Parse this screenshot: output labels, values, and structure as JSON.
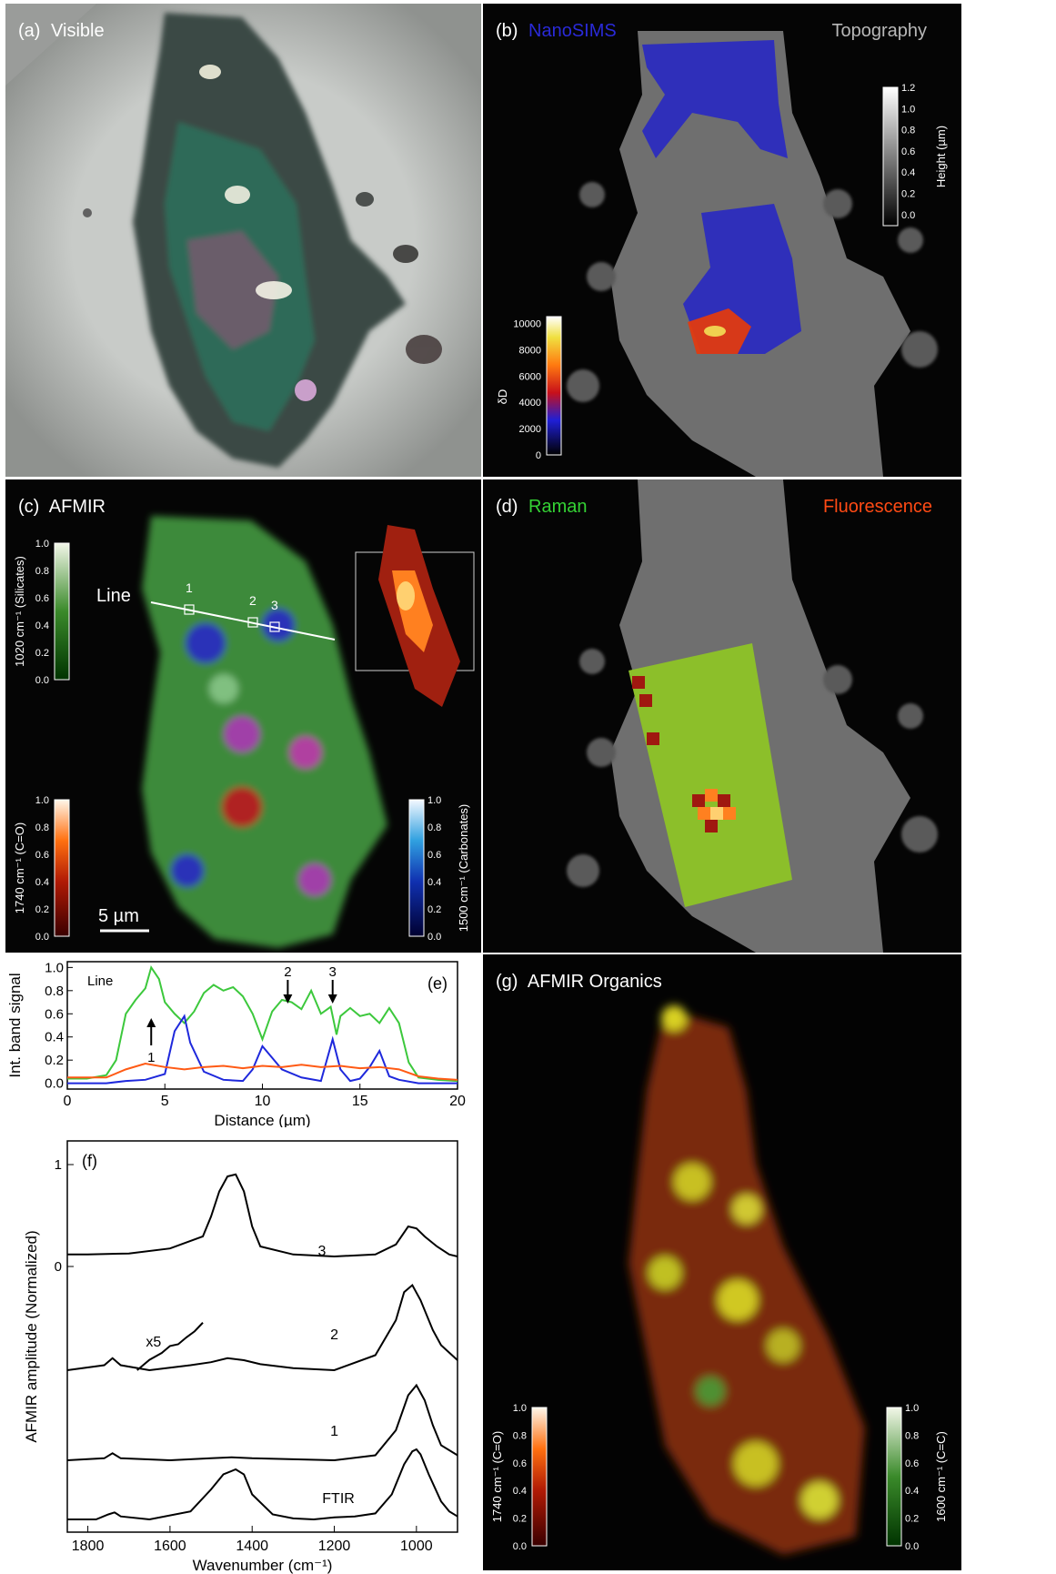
{
  "panels": {
    "a": {
      "letter": "(a)",
      "title": "Visible"
    },
    "b": {
      "letter": "(b)",
      "title_left": "NanoSIMS",
      "title_right": "Topography",
      "height_cbar": {
        "label": "Height (µm)",
        "ticks": [
          "0.0",
          "0.2",
          "0.4",
          "0.6",
          "0.8",
          "1.0",
          "1.2"
        ]
      },
      "dD_cbar": {
        "label": "δD",
        "ticks": [
          "0",
          "2000",
          "4000",
          "6000",
          "8000",
          "10000"
        ]
      }
    },
    "c": {
      "letter": "(c)",
      "title": "AFMIR",
      "line_label": "Line",
      "points": [
        "1",
        "2",
        "3"
      ],
      "scale_bar": "5 µm",
      "cbar_silicates": {
        "label": "1020 cm⁻¹ (Silicates)",
        "ticks": [
          "0.0",
          "0.2",
          "0.4",
          "0.6",
          "0.8",
          "1.0"
        ]
      },
      "cbar_co": {
        "label": "1740 cm⁻¹ (C=O)",
        "ticks": [
          "0.0",
          "0.2",
          "0.4",
          "0.6",
          "0.8",
          "1.0"
        ]
      },
      "cbar_carbonates": {
        "label": "1500 cm⁻¹ (Carbonates)",
        "ticks": [
          "0.0",
          "0.2",
          "0.4",
          "0.6",
          "0.8",
          "1.0"
        ]
      }
    },
    "d": {
      "letter": "(d)",
      "title_left": "Raman",
      "title_right": "Fluorescence"
    },
    "g": {
      "letter": "(g)",
      "title": "AFMIR Organics",
      "cbar_co": {
        "label": "1740 cm⁻¹ (C=O)",
        "ticks": [
          "0.0",
          "0.2",
          "0.4",
          "0.6",
          "0.8",
          "1.0"
        ]
      },
      "cbar_cc": {
        "label": "1600 cm⁻¹ (C=C)",
        "ticks": [
          "0.0",
          "0.2",
          "0.4",
          "0.6",
          "0.8",
          "1.0"
        ]
      }
    }
  },
  "colors": {
    "green": "#3cc83c",
    "blue": "#1e28dc",
    "orange": "#ff5a14",
    "nanosims_title": "#2a2ad8",
    "raman_title": "#34d234",
    "fluor_title": "#ff4a14"
  },
  "chart_data": [
    {
      "panel": "(e)",
      "type": "line",
      "title": "",
      "inner_label": "Line",
      "xlabel": "Distance (µm)",
      "ylabel": "Int. band signal",
      "xlim": [
        0,
        20
      ],
      "ylim": [
        -0.05,
        1.05
      ],
      "xticks": [
        0,
        5,
        10,
        15,
        20
      ],
      "yticks": [
        0.0,
        0.2,
        0.4,
        0.6,
        0.8,
        1.0
      ],
      "markers": [
        {
          "label": "1",
          "x": 4.3,
          "direction": "up"
        },
        {
          "label": "2",
          "x": 11.3,
          "direction": "down"
        },
        {
          "label": "3",
          "x": 13.6,
          "direction": "down"
        }
      ],
      "series": [
        {
          "color": "green",
          "x": [
            0,
            1,
            2,
            2.5,
            3,
            3.5,
            4,
            4.3,
            4.7,
            5,
            5.5,
            6,
            6.5,
            7,
            7.5,
            8,
            8.5,
            9,
            9.5,
            10,
            10.5,
            11,
            11.5,
            12,
            12.5,
            13,
            13.5,
            13.8,
            14,
            14.5,
            15,
            15.5,
            16,
            16.5,
            17,
            17.5,
            18,
            19,
            20
          ],
          "y": [
            0.04,
            0.04,
            0.07,
            0.2,
            0.6,
            0.72,
            0.82,
            1.0,
            0.9,
            0.7,
            0.6,
            0.52,
            0.62,
            0.78,
            0.85,
            0.8,
            0.83,
            0.75,
            0.6,
            0.38,
            0.62,
            0.72,
            0.7,
            0.64,
            0.8,
            0.6,
            0.66,
            0.42,
            0.58,
            0.65,
            0.58,
            0.6,
            0.52,
            0.65,
            0.52,
            0.18,
            0.05,
            0.03,
            0.02
          ]
        },
        {
          "color": "blue",
          "x": [
            0,
            2,
            3,
            4,
            5,
            5.5,
            6,
            6.3,
            7,
            8,
            9,
            9.5,
            10,
            10.5,
            11,
            12,
            13,
            13.6,
            14,
            14.5,
            15,
            15.5,
            16,
            16.5,
            17,
            18,
            20
          ],
          "y": [
            0.0,
            0.0,
            0.02,
            0.03,
            0.08,
            0.45,
            0.58,
            0.35,
            0.1,
            0.03,
            0.02,
            0.12,
            0.32,
            0.22,
            0.12,
            0.05,
            0.02,
            0.38,
            0.12,
            0.02,
            0.04,
            0.14,
            0.28,
            0.06,
            0.03,
            0.0,
            0.0
          ]
        },
        {
          "color": "orange",
          "x": [
            0,
            2,
            3,
            4,
            5,
            6,
            7,
            8,
            9,
            10,
            11,
            12,
            13,
            14,
            15,
            16,
            17,
            18,
            19,
            20
          ],
          "y": [
            0.05,
            0.05,
            0.12,
            0.17,
            0.14,
            0.12,
            0.14,
            0.15,
            0.13,
            0.15,
            0.14,
            0.16,
            0.14,
            0.15,
            0.13,
            0.14,
            0.12,
            0.06,
            0.04,
            0.03
          ]
        }
      ]
    },
    {
      "panel": "(f)",
      "type": "line",
      "title": "",
      "xlabel": "Wavenumber (cm⁻¹)",
      "ylabel": "AFMIR amplitude (Normalized)",
      "xlim": [
        1850,
        900
      ],
      "xticks": [
        1800,
        1600,
        1400,
        1200,
        1000
      ],
      "yticks_labels": [
        "0",
        "1"
      ],
      "scale_note": "x5",
      "series": [
        {
          "name": "3",
          "x": [
            1850,
            1800,
            1700,
            1600,
            1520,
            1500,
            1480,
            1460,
            1440,
            1420,
            1400,
            1380,
            1300,
            1200,
            1100,
            1050,
            1020,
            1000,
            980,
            950,
            920,
            900
          ],
          "y": [
            0.12,
            0.12,
            0.13,
            0.18,
            0.3,
            0.5,
            0.75,
            0.9,
            0.92,
            0.75,
            0.4,
            0.2,
            0.12,
            0.1,
            0.12,
            0.22,
            0.4,
            0.38,
            0.3,
            0.2,
            0.12,
            0.1
          ]
        },
        {
          "name": "2",
          "x": [
            1850,
            1760,
            1740,
            1720,
            1650,
            1550,
            1500,
            1460,
            1420,
            1380,
            1300,
            1200,
            1100,
            1050,
            1030,
            1010,
            990,
            960,
            940,
            900
          ],
          "y": [
            0.0,
            0.05,
            0.12,
            0.05,
            0.0,
            0.05,
            0.08,
            0.12,
            0.1,
            0.06,
            0.02,
            0.0,
            0.15,
            0.5,
            0.78,
            0.85,
            0.7,
            0.4,
            0.25,
            0.1
          ]
        },
        {
          "name": "x5",
          "x": [
            1680,
            1650,
            1620,
            1600,
            1580,
            1560,
            1540,
            1520
          ],
          "y": [
            0.0,
            0.12,
            0.2,
            0.28,
            0.3,
            0.38,
            0.45,
            0.55
          ]
        },
        {
          "name": "1",
          "x": [
            1850,
            1760,
            1740,
            1720,
            1600,
            1500,
            1450,
            1400,
            1300,
            1200,
            1100,
            1050,
            1020,
            1000,
            980,
            960,
            940,
            900
          ],
          "y": [
            0.0,
            0.02,
            0.07,
            0.02,
            0.0,
            0.02,
            0.03,
            0.02,
            0.01,
            0.0,
            0.05,
            0.3,
            0.65,
            0.75,
            0.6,
            0.35,
            0.15,
            0.05
          ]
        },
        {
          "name": "FTIR",
          "x": [
            1850,
            1780,
            1750,
            1735,
            1720,
            1650,
            1550,
            1500,
            1470,
            1440,
            1420,
            1400,
            1350,
            1300,
            1250,
            1200,
            1150,
            1100,
            1060,
            1030,
            1010,
            1000,
            990,
            970,
            940,
            920,
            900
          ],
          "y": [
            0.0,
            0.0,
            0.05,
            0.07,
            0.03,
            0.0,
            0.08,
            0.3,
            0.45,
            0.5,
            0.45,
            0.25,
            0.05,
            0.01,
            0.0,
            0.02,
            0.03,
            0.06,
            0.25,
            0.55,
            0.68,
            0.7,
            0.65,
            0.45,
            0.18,
            0.08,
            0.03
          ]
        }
      ]
    }
  ]
}
